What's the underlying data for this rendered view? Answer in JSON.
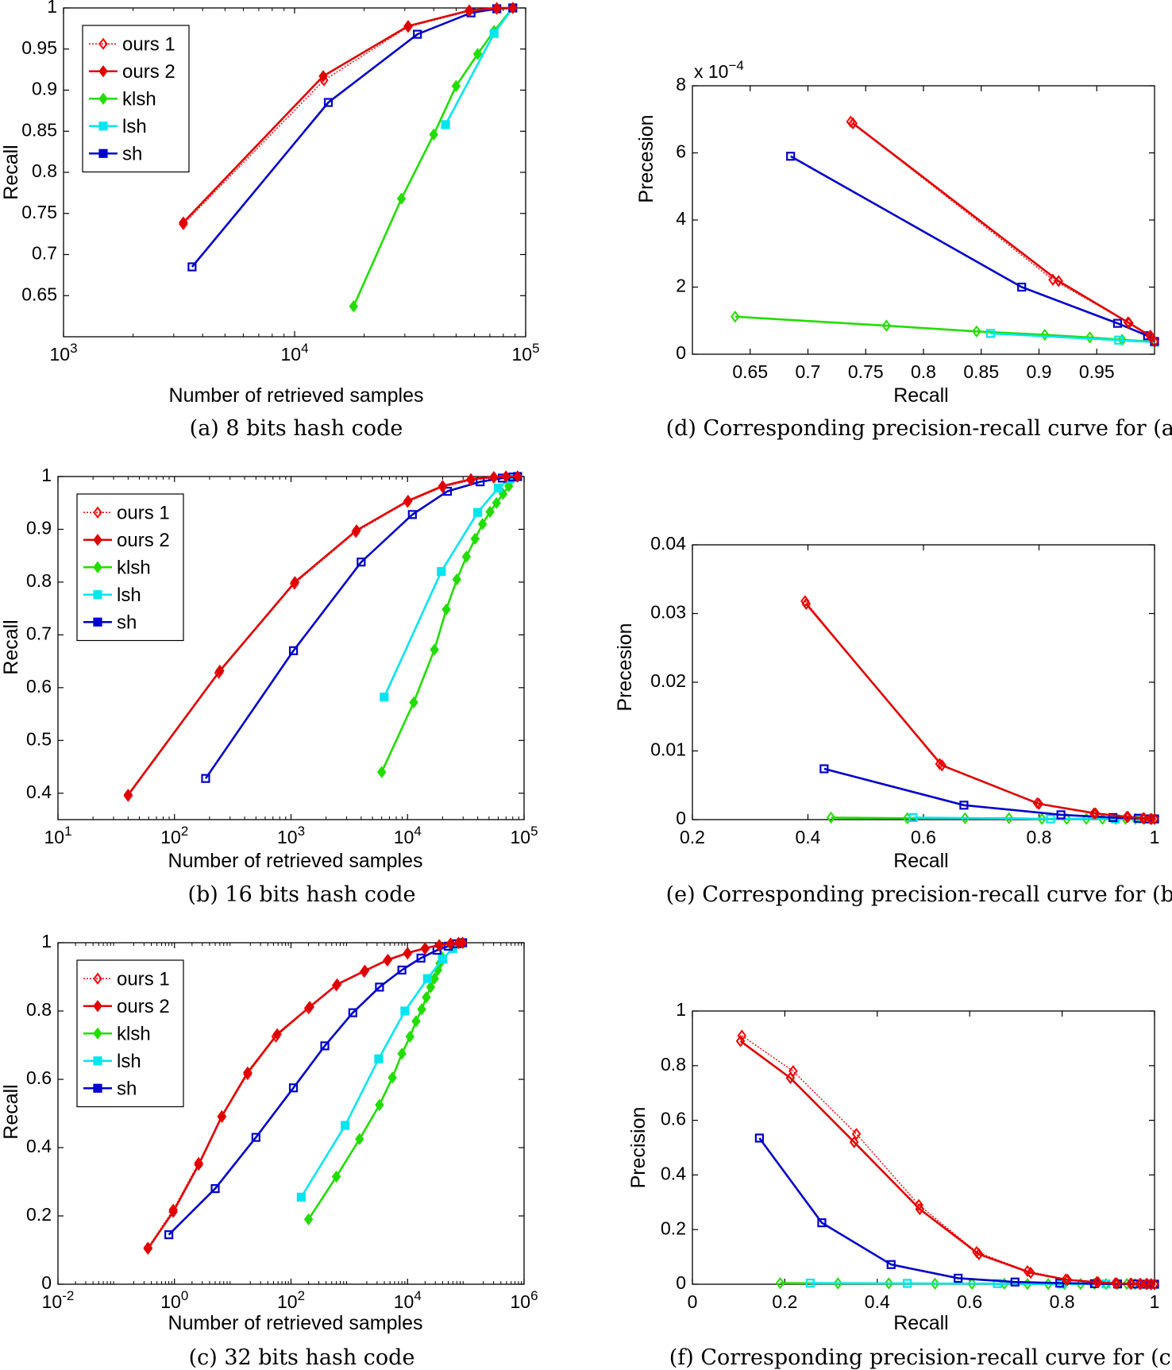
{
  "colors": {
    "ours1": "#ff0000",
    "ours2": "#e00000",
    "klsh": "#22dd00",
    "lsh": "#00e5ee",
    "sh": "#0000cc"
  },
  "chart_data": [
    {
      "id": "a",
      "type": "line",
      "caption": "(a) 8 bits hash code",
      "xlabel": "Number of retrieved samples",
      "ylabel": "Recall",
      "xscale": "log",
      "xlim": [
        1000,
        100000
      ],
      "ylim": [
        0.6,
        1.0
      ],
      "xticks": [
        "10^3",
        "10^4",
        "10^5"
      ],
      "yticks": [
        "0.65",
        "0.7",
        "0.75",
        "0.8",
        "0.85",
        "0.9",
        "0.95",
        "1"
      ],
      "legend": {
        "position": "top-left",
        "entries": [
          "ours 1",
          "ours 2",
          "klsh",
          "lsh",
          "sh"
        ]
      },
      "series": [
        {
          "name": "ours 1",
          "x": [
            3300,
            13400,
            31000,
            57000,
            75000,
            88000
          ],
          "y": [
            0.737,
            0.912,
            0.977,
            0.996,
            0.999,
            1.0
          ]
        },
        {
          "name": "ours 2",
          "x": [
            3300,
            13300,
            31000,
            57000,
            75000,
            88000
          ],
          "y": [
            0.739,
            0.917,
            0.978,
            0.997,
            1.0,
            1.0
          ]
        },
        {
          "name": "klsh",
          "x": [
            18000,
            29000,
            40000,
            50000,
            62000,
            73000,
            88000
          ],
          "y": [
            0.637,
            0.768,
            0.846,
            0.905,
            0.944,
            0.972,
            1.0
          ]
        },
        {
          "name": "lsh",
          "x": [
            45000,
            73000,
            88000
          ],
          "y": [
            0.858,
            0.969,
            1.0
          ]
        },
        {
          "name": "sh",
          "x": [
            3600,
            14000,
            34000,
            58000,
            75000,
            88000
          ],
          "y": [
            0.685,
            0.885,
            0.968,
            0.994,
            0.999,
            1.0
          ]
        }
      ]
    },
    {
      "id": "d",
      "type": "line",
      "caption": "(d) Corresponding precision-recall curve for (a)",
      "xlabel": "Recall",
      "ylabel": "Precesion",
      "exponent_label": "x 10",
      "exponent_power": "−4",
      "xlim": [
        0.6,
        1.0
      ],
      "ylim": [
        0,
        8
      ],
      "xticks": [
        "0.65",
        "0.7",
        "0.75",
        "0.8",
        "0.85",
        "0.9",
        "0.95"
      ],
      "yticks": [
        "0",
        "2",
        "4",
        "6",
        "8"
      ],
      "series": [
        {
          "name": "ours 1",
          "x": [
            0.737,
            0.912,
            0.977,
            0.996,
            1.0
          ],
          "y": [
            6.93,
            2.22,
            0.95,
            0.55,
            0.38
          ]
        },
        {
          "name": "ours 2",
          "x": [
            0.739,
            0.917,
            0.978,
            0.997,
            1.0
          ],
          "y": [
            6.88,
            2.18,
            0.93,
            0.53,
            0.37
          ]
        },
        {
          "name": "klsh",
          "x": [
            0.637,
            0.768,
            0.846,
            0.905,
            0.944,
            0.972,
            1.0
          ],
          "y": [
            1.12,
            0.85,
            0.68,
            0.58,
            0.5,
            0.43,
            0.37
          ]
        },
        {
          "name": "lsh",
          "x": [
            0.858,
            0.969,
            1.0
          ],
          "y": [
            0.62,
            0.42,
            0.36
          ]
        },
        {
          "name": "sh",
          "x": [
            0.685,
            0.885,
            0.968,
            0.994,
            1.0
          ],
          "y": [
            5.9,
            2.0,
            0.92,
            0.55,
            0.38
          ]
        }
      ]
    },
    {
      "id": "b",
      "type": "line",
      "caption": "(b) 16 bits hash code",
      "xlabel": "Number of retrieved samples",
      "ylabel": "Recall",
      "xscale": "log",
      "xlim": [
        10,
        100000
      ],
      "ylim": [
        0.35,
        1.0
      ],
      "xticks": [
        "10^1",
        "10^2",
        "10^3",
        "10^4",
        "10^5"
      ],
      "yticks": [
        "0.4",
        "0.5",
        "0.6",
        "0.7",
        "0.8",
        "0.9",
        "1"
      ],
      "legend": {
        "position": "top-left",
        "entries": [
          "ours 1",
          "ours 2",
          "klsh",
          "lsh",
          "sh"
        ]
      },
      "series": [
        {
          "name": "ours 1",
          "x": [
            40,
            240,
            1070,
            3600,
            10000,
            20000,
            35000,
            55000,
            70000,
            88000
          ],
          "y": [
            0.395,
            0.628,
            0.797,
            0.895,
            0.952,
            0.98,
            0.993,
            0.998,
            1.0,
            1.0
          ]
        },
        {
          "name": "ours 2",
          "x": [
            40,
            245,
            1080,
            3650,
            10100,
            20000,
            35000,
            55000,
            70000,
            88000
          ],
          "y": [
            0.397,
            0.632,
            0.8,
            0.898,
            0.954,
            0.982,
            0.995,
            0.999,
            1.0,
            1.0
          ]
        },
        {
          "name": "klsh",
          "x": [
            6000,
            11300,
            17000,
            21500,
            26500,
            32000,
            38000,
            44000,
            51000,
            58000,
            66000,
            74000,
            88000
          ],
          "y": [
            0.44,
            0.572,
            0.672,
            0.748,
            0.805,
            0.848,
            0.882,
            0.91,
            0.933,
            0.95,
            0.967,
            0.982,
            1.0
          ]
        },
        {
          "name": "lsh",
          "x": [
            6300,
            19500,
            40000,
            60000,
            75000,
            88000
          ],
          "y": [
            0.582,
            0.82,
            0.932,
            0.978,
            0.995,
            1.0
          ]
        },
        {
          "name": "sh",
          "x": [
            185,
            1050,
            4000,
            11000,
            22000,
            42000,
            65000,
            80000,
            88000
          ],
          "y": [
            0.428,
            0.67,
            0.838,
            0.928,
            0.972,
            0.99,
            0.997,
            0.999,
            1.0
          ]
        }
      ]
    },
    {
      "id": "e",
      "type": "line",
      "caption": "(e) Corresponding precision-recall curve for (b)",
      "xlabel": "Recall",
      "ylabel": "Precesion",
      "xlim": [
        0.2,
        1.0
      ],
      "ylim": [
        0,
        0.04
      ],
      "xticks": [
        "0.2",
        "0.4",
        "0.6",
        "0.8",
        "1"
      ],
      "yticks": [
        "0",
        "0.01",
        "0.02",
        "0.03",
        "0.04"
      ],
      "series": [
        {
          "name": "ours 1",
          "x": [
            0.395,
            0.628,
            0.797,
            0.895,
            0.952,
            0.98,
            0.993,
            1.0
          ],
          "y": [
            0.0318,
            0.0081,
            0.0024,
            0.0009,
            0.0004,
            0.0002,
            0.0001,
            0.0001
          ]
        },
        {
          "name": "ours 2",
          "x": [
            0.397,
            0.632,
            0.8,
            0.898,
            0.954,
            0.982,
            0.995,
            1.0
          ],
          "y": [
            0.0314,
            0.0079,
            0.0023,
            0.0009,
            0.0004,
            0.0002,
            0.0001,
            0.0001
          ]
        },
        {
          "name": "klsh",
          "x": [
            0.44,
            0.572,
            0.672,
            0.748,
            0.805,
            0.848,
            0.882,
            0.91,
            0.933,
            0.95,
            0.967,
            0.982,
            1.0
          ],
          "y": [
            0.0003,
            0.0002,
            0.0002,
            0.0002,
            0.0001,
            0.0001,
            0.0001,
            0.0001,
            0.0001,
            0.0001,
            0.0001,
            0.0001,
            0.0001
          ]
        },
        {
          "name": "lsh",
          "x": [
            0.582,
            0.82,
            0.932,
            0.978,
            1.0
          ],
          "y": [
            0.0003,
            0.0001,
            0.0001,
            0.0001,
            0.0001
          ]
        },
        {
          "name": "sh",
          "x": [
            0.428,
            0.67,
            0.838,
            0.928,
            0.972,
            0.99,
            1.0
          ],
          "y": [
            0.0074,
            0.0021,
            0.0007,
            0.0003,
            0.0002,
            0.0001,
            0.0001
          ]
        }
      ]
    },
    {
      "id": "c",
      "type": "line",
      "caption": "(c) 32 bits hash code",
      "xlabel": "Number of retrieved samples",
      "ylabel": "Recall",
      "xscale": "log",
      "xlim": [
        0.01,
        1000000
      ],
      "ylim": [
        0,
        1.0
      ],
      "xticks": [
        "10^-2",
        "10^0",
        "10^2",
        "10^4",
        "10^6"
      ],
      "yticks": [
        "0",
        "0.2",
        "0.4",
        "0.6",
        "0.8",
        "1"
      ],
      "legend": {
        "position": "top-left",
        "entries": [
          "ours 1",
          "ours 2",
          "klsh",
          "lsh",
          "sh"
        ]
      },
      "series": [
        {
          "name": "ours 1",
          "x": [
            0.35,
            0.95,
            2.6,
            6.5,
            18,
            55,
            200,
            600,
            1800,
            4500,
            10000,
            20000,
            35000,
            55000,
            75000,
            88000
          ],
          "y": [
            0.107,
            0.218,
            0.355,
            0.49,
            0.615,
            0.725,
            0.808,
            0.875,
            0.915,
            0.948,
            0.968,
            0.982,
            0.992,
            0.997,
            0.999,
            1.0
          ]
        },
        {
          "name": "ours 2",
          "x": [
            0.35,
            0.95,
            2.6,
            6.5,
            18,
            58,
            210,
            620,
            1850,
            4600,
            10000,
            20000,
            35000,
            55000,
            75000,
            88000
          ],
          "y": [
            0.104,
            0.212,
            0.35,
            0.492,
            0.62,
            0.732,
            0.812,
            0.878,
            0.918,
            0.95,
            0.97,
            0.984,
            0.993,
            0.998,
            1.0,
            1.0
          ]
        },
        {
          "name": "klsh",
          "x": [
            200,
            600,
            1500,
            3300,
            5500,
            8000,
            11000,
            14000,
            17500,
            21000,
            25000,
            29000,
            33000,
            36000,
            39000
          ],
          "y": [
            0.19,
            0.315,
            0.425,
            0.525,
            0.605,
            0.675,
            0.725,
            0.77,
            0.805,
            0.84,
            0.87,
            0.895,
            0.92,
            0.94,
            0.958
          ]
        },
        {
          "name": "lsh",
          "x": [
            150,
            850,
            3200,
            9000,
            22000,
            40000,
            60000,
            80000,
            88000
          ],
          "y": [
            0.255,
            0.465,
            0.66,
            0.8,
            0.895,
            0.952,
            0.983,
            0.997,
            1.0
          ]
        },
        {
          "name": "sh",
          "x": [
            0.8,
            5,
            25,
            110,
            380,
            1150,
            3300,
            8000,
            17000,
            32000,
            50000,
            70000,
            88000
          ],
          "y": [
            0.145,
            0.28,
            0.43,
            0.575,
            0.698,
            0.795,
            0.87,
            0.92,
            0.955,
            0.978,
            0.99,
            0.997,
            1.0
          ]
        }
      ]
    },
    {
      "id": "f",
      "type": "line",
      "caption": "(f) Corresponding precision-recall curve for (c)",
      "xlabel": "Recall",
      "ylabel": "Precision",
      "xlim": [
        0,
        1.0
      ],
      "ylim": [
        0,
        1.0
      ],
      "xticks": [
        "0",
        "0.2",
        "0.4",
        "0.6",
        "0.8",
        "1"
      ],
      "yticks": [
        "0",
        "0.2",
        "0.4",
        "0.6",
        "0.8",
        "1"
      ],
      "series": [
        {
          "name": "ours 1",
          "x": [
            0.107,
            0.218,
            0.355,
            0.49,
            0.615,
            0.725,
            0.808,
            0.875,
            0.915,
            0.948,
            0.968,
            0.982,
            0.992,
            1.0
          ],
          "y": [
            0.91,
            0.78,
            0.55,
            0.29,
            0.118,
            0.048,
            0.018,
            0.008,
            0.004,
            0.002,
            0.001,
            0.001,
            0.0,
            0.0
          ]
        },
        {
          "name": "ours 2",
          "x": [
            0.104,
            0.212,
            0.35,
            0.492,
            0.62,
            0.732,
            0.812,
            0.878,
            0.918,
            0.95,
            0.97,
            0.984,
            0.993,
            1.0
          ],
          "y": [
            0.89,
            0.755,
            0.52,
            0.275,
            0.11,
            0.042,
            0.016,
            0.007,
            0.003,
            0.002,
            0.001,
            0.001,
            0.0,
            0.0
          ]
        },
        {
          "name": "klsh",
          "x": [
            0.19,
            0.315,
            0.425,
            0.525,
            0.605,
            0.675,
            0.725,
            0.77,
            0.805,
            0.84,
            0.87,
            0.895,
            0.92,
            0.94,
            0.958,
            1.0
          ],
          "y": [
            0.004,
            0.003,
            0.003,
            0.002,
            0.002,
            0.002,
            0.001,
            0.001,
            0.001,
            0.001,
            0.001,
            0.001,
            0.001,
            0.001,
            0.0,
            0.0
          ]
        },
        {
          "name": "lsh",
          "x": [
            0.255,
            0.465,
            0.66,
            0.8,
            0.895,
            0.952,
            0.983,
            1.0
          ],
          "y": [
            0.004,
            0.003,
            0.002,
            0.001,
            0.001,
            0.001,
            0.0,
            0.0
          ]
        },
        {
          "name": "sh",
          "x": [
            0.145,
            0.28,
            0.43,
            0.575,
            0.698,
            0.795,
            0.87,
            0.92,
            0.955,
            0.978,
            0.99,
            1.0
          ],
          "y": [
            0.535,
            0.225,
            0.072,
            0.022,
            0.008,
            0.004,
            0.002,
            0.001,
            0.001,
            0.0,
            0.0,
            0.0
          ]
        }
      ]
    }
  ]
}
